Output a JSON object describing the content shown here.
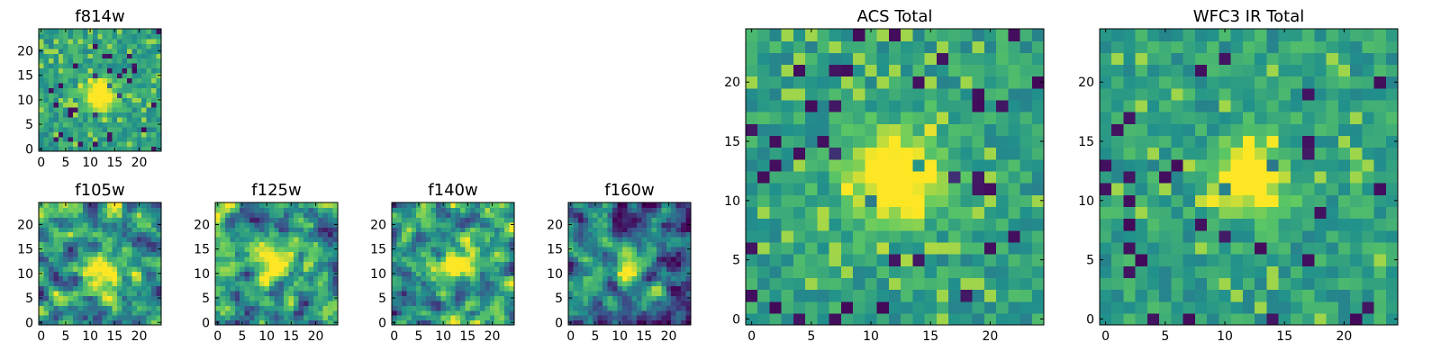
{
  "colormap": [
    "#440154",
    "#3b528b",
    "#21918c",
    "#5ec962",
    "#fde725"
  ],
  "chart_data": [
    {
      "type": "heatmap",
      "title": "f814w",
      "size": 25,
      "xticks": [
        0,
        5,
        10,
        15,
        20
      ],
      "yticks": [
        0,
        5,
        10,
        15,
        20
      ],
      "peak": [
        12,
        11
      ],
      "peak_radius": 2.2,
      "seed": 11,
      "noise": "pixel",
      "xlim": [
        -0.5,
        24.5
      ],
      "ylim": [
        -0.5,
        24.5
      ]
    },
    {
      "type": "heatmap",
      "title": "f105w",
      "size": 25,
      "xticks": [
        0,
        5,
        10,
        15,
        20
      ],
      "yticks": [
        0,
        5,
        10,
        15,
        20
      ],
      "peak": [
        12,
        10
      ],
      "peak_radius": 2.6,
      "seed": 23,
      "noise": "smooth",
      "xlim": [
        -0.5,
        24.5
      ],
      "ylim": [
        -0.5,
        24.5
      ]
    },
    {
      "type": "heatmap",
      "title": "f125w",
      "size": 25,
      "xticks": [
        0,
        5,
        10,
        15,
        20
      ],
      "yticks": [
        0,
        5,
        10,
        15,
        20
      ],
      "peak": [
        12,
        12
      ],
      "peak_radius": 2.4,
      "seed": 37,
      "noise": "smooth",
      "xlim": [
        -0.5,
        24.5
      ],
      "ylim": [
        -0.5,
        24.5
      ]
    },
    {
      "type": "heatmap",
      "title": "f140w",
      "size": 25,
      "xticks": [
        0,
        5,
        10,
        15,
        20
      ],
      "yticks": [
        0,
        5,
        10,
        15,
        20
      ],
      "peak": [
        13,
        12
      ],
      "peak_radius": 2.6,
      "seed": 41,
      "noise": "smooth",
      "xlim": [
        -0.5,
        24.5
      ],
      "ylim": [
        -0.5,
        24.5
      ]
    },
    {
      "type": "heatmap",
      "title": "f160w",
      "size": 25,
      "xticks": [
        0,
        5,
        10,
        15,
        20
      ],
      "yticks": [
        0,
        5,
        10,
        15,
        20
      ],
      "peak": [
        12,
        11
      ],
      "peak_radius": 2.0,
      "seed": 53,
      "noise": "smooth_dark",
      "xlim": [
        -0.5,
        24.5
      ],
      "ylim": [
        -0.5,
        24.5
      ]
    },
    {
      "type": "heatmap",
      "title": "ACS Total",
      "size": 25,
      "xticks": [
        0,
        5,
        10,
        15,
        20
      ],
      "yticks": [
        0,
        5,
        10,
        15,
        20
      ],
      "peak": [
        12,
        12
      ],
      "peak_radius": 2.6,
      "seed": 67,
      "noise": "pixel",
      "xlim": [
        -0.5,
        24.5
      ],
      "ylim": [
        -0.5,
        24.5
      ]
    },
    {
      "type": "heatmap",
      "title": "WFC3 IR Total",
      "size": 25,
      "xticks": [
        0,
        5,
        10,
        15,
        20
      ],
      "yticks": [
        0,
        5,
        10,
        15,
        20
      ],
      "peak": [
        12,
        12
      ],
      "peak_radius": 2.0,
      "seed": 79,
      "noise": "pixel",
      "xlim": [
        -0.5,
        24.5
      ],
      "ylim": [
        -0.5,
        24.5
      ]
    }
  ]
}
